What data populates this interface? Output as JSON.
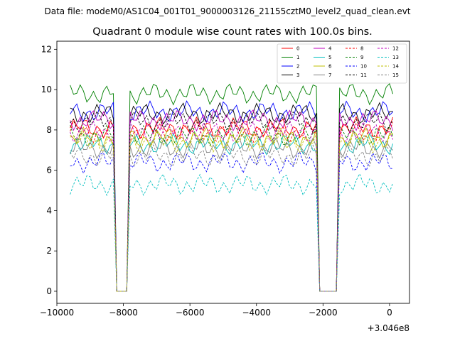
{
  "chart_data": {
    "type": "line",
    "suptitle": "Data file: modeM0/AS1C04_001T01_9000003126_21155cztM0_level2_quad_clean.evt",
    "title": "Quadrant 0 module wise count rates with 100.0s bins.",
    "xlabel": "",
    "ylabel": "",
    "x_offset_label": "+3.046e8",
    "xlim": [
      -10000,
      600
    ],
    "ylim": [
      -0.6,
      12.4
    ],
    "xticks": [
      -10000,
      -8000,
      -6000,
      -4000,
      -2000,
      0
    ],
    "xtick_labels": [
      "−10000",
      "−8000",
      "−6000",
      "−4000",
      "−2000",
      "0"
    ],
    "yticks": [
      0,
      2,
      4,
      6,
      8,
      10,
      12
    ],
    "ytick_labels": [
      "0",
      "2",
      "4",
      "6",
      "8",
      "10",
      "12"
    ],
    "grid": false,
    "legend_position": "top-right",
    "x_start": -9600,
    "x_step": 100,
    "x_end": 100,
    "gap_zero_ranges": [
      [
        -8200,
        -7900
      ],
      [
        -2100,
        -1600
      ]
    ],
    "series": [
      {
        "name": "0",
        "color": "#ff0000",
        "dashed": false,
        "mean": 8.1
      },
      {
        "name": "1",
        "color": "#008000",
        "dashed": false,
        "mean": 9.8
      },
      {
        "name": "2",
        "color": "#0000ff",
        "dashed": false,
        "mean": 8.9
      },
      {
        "name": "3",
        "color": "#000000",
        "dashed": false,
        "mean": 8.8
      },
      {
        "name": "4",
        "color": "#bf00bf",
        "dashed": false,
        "mean": 8.5
      },
      {
        "name": "5",
        "color": "#00bfbf",
        "dashed": false,
        "mean": 7.3
      },
      {
        "name": "6",
        "color": "#bfbf00",
        "dashed": false,
        "mean": 7.6
      },
      {
        "name": "7",
        "color": "#808080",
        "dashed": false,
        "mean": 7.1
      },
      {
        "name": "8",
        "color": "#ff0000",
        "dashed": true,
        "mean": 7.9
      },
      {
        "name": "9",
        "color": "#008000",
        "dashed": true,
        "mean": 7.7
      },
      {
        "name": "10",
        "color": "#0000ff",
        "dashed": true,
        "mean": 6.4
      },
      {
        "name": "11",
        "color": "#000000",
        "dashed": true,
        "mean": 8.4
      },
      {
        "name": "12",
        "color": "#bf00bf",
        "dashed": true,
        "mean": 7.9
      },
      {
        "name": "13",
        "color": "#00bfbf",
        "dashed": true,
        "mean": 5.3
      },
      {
        "name": "14",
        "color": "#bfbf00",
        "dashed": true,
        "mean": 7.4
      },
      {
        "name": "15",
        "color": "#808080",
        "dashed": true,
        "mean": 6.7
      }
    ]
  }
}
